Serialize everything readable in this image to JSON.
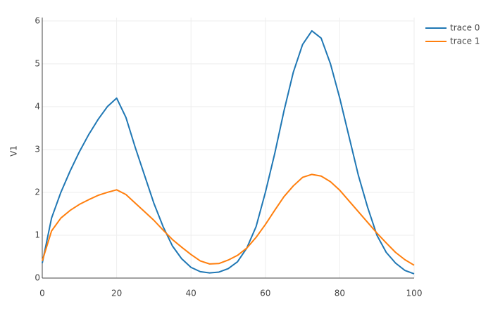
{
  "chart_data": {
    "type": "line",
    "y_label": "V1",
    "x": [
      0,
      2.5,
      5,
      7.5,
      10,
      12.5,
      15,
      17.5,
      20,
      22.5,
      25,
      27.5,
      30,
      32.5,
      35,
      37.5,
      40,
      42.5,
      45,
      47.5,
      50,
      52.5,
      55,
      57.5,
      60,
      62.5,
      65,
      67.5,
      70,
      72.5,
      75,
      77.5,
      80,
      82.5,
      85,
      87.5,
      90,
      92.5,
      95,
      97.5,
      100
    ],
    "series": [
      {
        "name": "trace 0",
        "color": "#1f77b4",
        "values": [
          0.35,
          1.4,
          2.0,
          2.5,
          2.95,
          3.35,
          3.7,
          4.0,
          4.2,
          3.75,
          3.05,
          2.4,
          1.75,
          1.2,
          0.75,
          0.45,
          0.25,
          0.15,
          0.12,
          0.14,
          0.22,
          0.38,
          0.7,
          1.2,
          2.0,
          2.9,
          3.9,
          4.8,
          5.45,
          5.77,
          5.6,
          5.0,
          4.2,
          3.3,
          2.4,
          1.65,
          1.0,
          0.6,
          0.35,
          0.18,
          0.1
        ]
      },
      {
        "name": "trace 1",
        "color": "#ff7f0e",
        "values": [
          0.4,
          1.1,
          1.4,
          1.58,
          1.72,
          1.83,
          1.93,
          2.0,
          2.06,
          1.95,
          1.75,
          1.55,
          1.35,
          1.12,
          0.9,
          0.72,
          0.55,
          0.4,
          0.33,
          0.34,
          0.42,
          0.53,
          0.7,
          0.95,
          1.25,
          1.58,
          1.9,
          2.15,
          2.35,
          2.42,
          2.38,
          2.25,
          2.05,
          1.8,
          1.55,
          1.3,
          1.05,
          0.82,
          0.6,
          0.43,
          0.3
        ]
      }
    ],
    "xlim": [
      0,
      100
    ],
    "xticks": [
      0,
      20,
      40,
      60,
      80,
      100
    ],
    "ylim": [
      0,
      6.08
    ],
    "yticks": [
      0,
      1,
      2,
      3,
      4,
      5,
      6
    ],
    "grid": true,
    "legend": "top-right"
  }
}
